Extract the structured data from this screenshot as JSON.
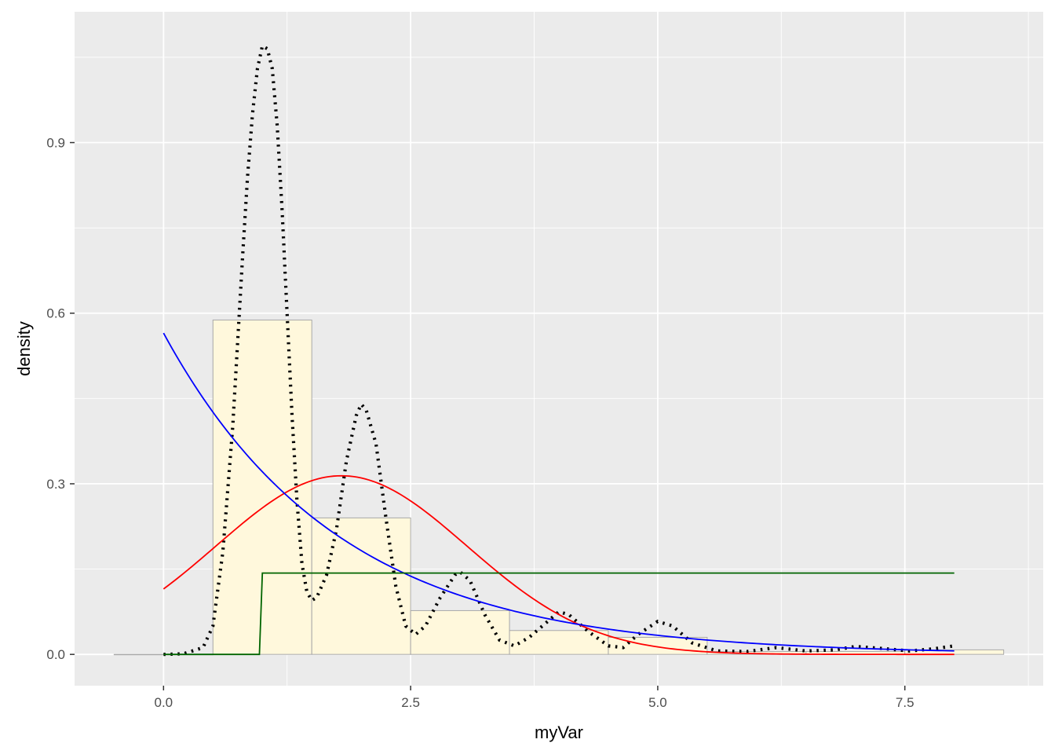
{
  "chart_data": {
    "type": "histogram",
    "xlabel": "myVar",
    "ylabel": "density",
    "xlim": [
      -0.9,
      8.9
    ],
    "ylim": [
      -0.055,
      1.13
    ],
    "x_ticks": [
      {
        "value": 0.0,
        "label": "0.0"
      },
      {
        "value": 2.5,
        "label": "2.5"
      },
      {
        "value": 5.0,
        "label": "5.0"
      },
      {
        "value": 7.5,
        "label": "7.5"
      }
    ],
    "y_ticks": [
      {
        "value": 0.0,
        "label": "0.0"
      },
      {
        "value": 0.3,
        "label": "0.3"
      },
      {
        "value": 0.6,
        "label": "0.6"
      },
      {
        "value": 0.9,
        "label": "0.9"
      }
    ],
    "x_minor": [
      -1.25,
      1.25,
      3.75,
      6.25,
      8.75
    ],
    "y_minor": [
      -0.15,
      0.15,
      0.45,
      0.75,
      1.05
    ],
    "grid": true,
    "histogram": {
      "fill": "#fff8dc",
      "stroke": "#a8a8a8",
      "bins": [
        {
          "x0": -0.5,
          "x1": 0.5,
          "density": 0.0
        },
        {
          "x0": 0.5,
          "x1": 1.5,
          "density": 0.588
        },
        {
          "x0": 1.5,
          "x1": 2.5,
          "density": 0.24
        },
        {
          "x0": 2.5,
          "x1": 3.5,
          "density": 0.077
        },
        {
          "x0": 3.5,
          "x1": 4.5,
          "density": 0.042
        },
        {
          "x0": 4.5,
          "x1": 5.5,
          "density": 0.03
        },
        {
          "x0": 5.5,
          "x1": 6.5,
          "density": 0.005
        },
        {
          "x0": 6.5,
          "x1": 7.5,
          "density": 0.005
        },
        {
          "x0": 7.5,
          "x1": 8.5,
          "density": 0.008
        }
      ]
    },
    "curves": [
      {
        "color": "#000000",
        "style": "dotted",
        "points": [
          [
            0.0,
            0.0
          ],
          [
            0.2,
            0.001
          ],
          [
            0.4,
            0.012
          ],
          [
            0.5,
            0.05
          ],
          [
            0.6,
            0.18
          ],
          [
            0.7,
            0.4
          ],
          [
            0.75,
            0.55
          ],
          [
            0.8,
            0.7
          ],
          [
            0.85,
            0.84
          ],
          [
            0.9,
            0.95
          ],
          [
            0.95,
            1.03
          ],
          [
            1.0,
            1.07
          ],
          [
            1.05,
            1.065
          ],
          [
            1.1,
            1.03
          ],
          [
            1.15,
            0.93
          ],
          [
            1.2,
            0.78
          ],
          [
            1.25,
            0.6
          ],
          [
            1.3,
            0.42
          ],
          [
            1.35,
            0.27
          ],
          [
            1.4,
            0.16
          ],
          [
            1.45,
            0.11
          ],
          [
            1.5,
            0.095
          ],
          [
            1.55,
            0.1
          ],
          [
            1.65,
            0.14
          ],
          [
            1.75,
            0.22
          ],
          [
            1.85,
            0.34
          ],
          [
            1.95,
            0.42
          ],
          [
            2.0,
            0.44
          ],
          [
            2.05,
            0.43
          ],
          [
            2.15,
            0.37
          ],
          [
            2.25,
            0.24
          ],
          [
            2.35,
            0.12
          ],
          [
            2.45,
            0.05
          ],
          [
            2.55,
            0.035
          ],
          [
            2.65,
            0.05
          ],
          [
            2.8,
            0.1
          ],
          [
            2.95,
            0.14
          ],
          [
            3.0,
            0.145
          ],
          [
            3.1,
            0.13
          ],
          [
            3.25,
            0.07
          ],
          [
            3.4,
            0.025
          ],
          [
            3.55,
            0.015
          ],
          [
            3.7,
            0.03
          ],
          [
            3.9,
            0.06
          ],
          [
            4.0,
            0.075
          ],
          [
            4.1,
            0.07
          ],
          [
            4.3,
            0.04
          ],
          [
            4.5,
            0.015
          ],
          [
            4.65,
            0.012
          ],
          [
            4.8,
            0.035
          ],
          [
            5.0,
            0.058
          ],
          [
            5.15,
            0.05
          ],
          [
            5.35,
            0.02
          ],
          [
            5.6,
            0.006
          ],
          [
            5.9,
            0.005
          ],
          [
            6.2,
            0.012
          ],
          [
            6.5,
            0.006
          ],
          [
            6.8,
            0.008
          ],
          [
            7.0,
            0.014
          ],
          [
            7.3,
            0.01
          ],
          [
            7.55,
            0.006
          ],
          [
            7.8,
            0.01
          ],
          [
            8.0,
            0.015
          ]
        ]
      },
      {
        "color": "#ff0000",
        "style": "solid",
        "kind": "normal",
        "mean": 1.8,
        "sd": 1.27,
        "x_range": [
          0.0,
          8.0
        ]
      },
      {
        "color": "#0000ff",
        "style": "solid",
        "kind": "exponential",
        "rate": 0.565,
        "x_range": [
          0.0,
          8.0
        ]
      },
      {
        "color": "#006400",
        "style": "solid",
        "kind": "step",
        "points": [
          [
            0.0,
            0.0
          ],
          [
            0.97,
            0.0
          ],
          [
            1.0,
            0.143
          ],
          [
            8.0,
            0.143
          ]
        ]
      }
    ]
  }
}
